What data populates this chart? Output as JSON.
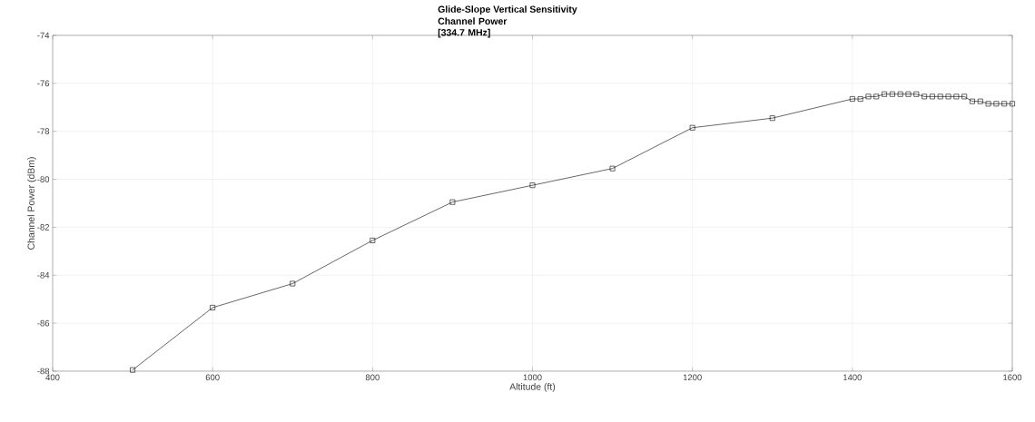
{
  "chart_data": {
    "type": "line",
    "title": "Glide-Slope Vertical Sensitivity",
    "subtitle": "Channel Power [334.7 MHz]",
    "xlabel": "Altitude (ft)",
    "ylabel": "Channel Power (dBm)",
    "x": [
      500,
      600,
      700,
      800,
      900,
      1000,
      1100,
      1200,
      1300,
      1400,
      1410,
      1420,
      1430,
      1440,
      1450,
      1460,
      1470,
      1480,
      1490,
      1500,
      1510,
      1520,
      1530,
      1540,
      1550,
      1560,
      1570,
      1580,
      1590,
      1600
    ],
    "values": [
      -87.95,
      -85.35,
      -84.35,
      -82.55,
      -80.95,
      -80.25,
      -79.55,
      -77.85,
      -77.45,
      -76.65,
      -76.65,
      -76.55,
      -76.55,
      -76.45,
      -76.45,
      -76.45,
      -76.45,
      -76.45,
      -76.55,
      -76.55,
      -76.55,
      -76.55,
      -76.55,
      -76.55,
      -76.75,
      -76.75,
      -76.85,
      -76.85,
      -76.85,
      -76.85
    ],
    "color": "#000000",
    "marker": "square",
    "line_style": "solid",
    "grid": true,
    "xlim": [
      400,
      1600
    ],
    "ylim": [
      -88,
      -74
    ],
    "xticks": [
      400,
      600,
      800,
      1000,
      1200,
      1400,
      1600
    ],
    "yticks": [
      -88,
      -86,
      -84,
      -82,
      -80,
      -78,
      -76,
      -74
    ]
  }
}
